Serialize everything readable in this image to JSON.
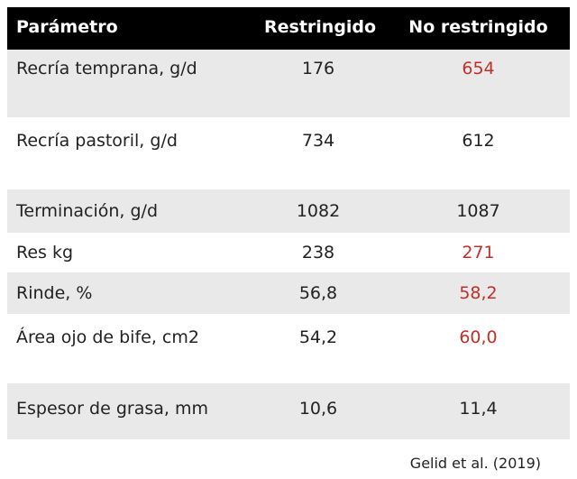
{
  "table": {
    "header": [
      "Parámetro",
      "Restringido",
      "No restringido"
    ],
    "rows": [
      [
        "Recría temprana, g/d",
        "176",
        "654"
      ],
      [
        "Recría pastoril, g/d",
        "734",
        "612"
      ],
      [
        "Terminación, g/d",
        "1082",
        "1087"
      ],
      [
        "Res kg",
        "238",
        "271"
      ],
      [
        "Rinde, %",
        "56,8",
        "58,2"
      ],
      [
        "Área ojo de bife, cm2",
        "54,2",
        "60,0"
      ],
      [
        "Espesor de grasa, mm",
        "10,6",
        "11,4"
      ]
    ]
  },
  "source": "Gelid et al. (2019)"
}
